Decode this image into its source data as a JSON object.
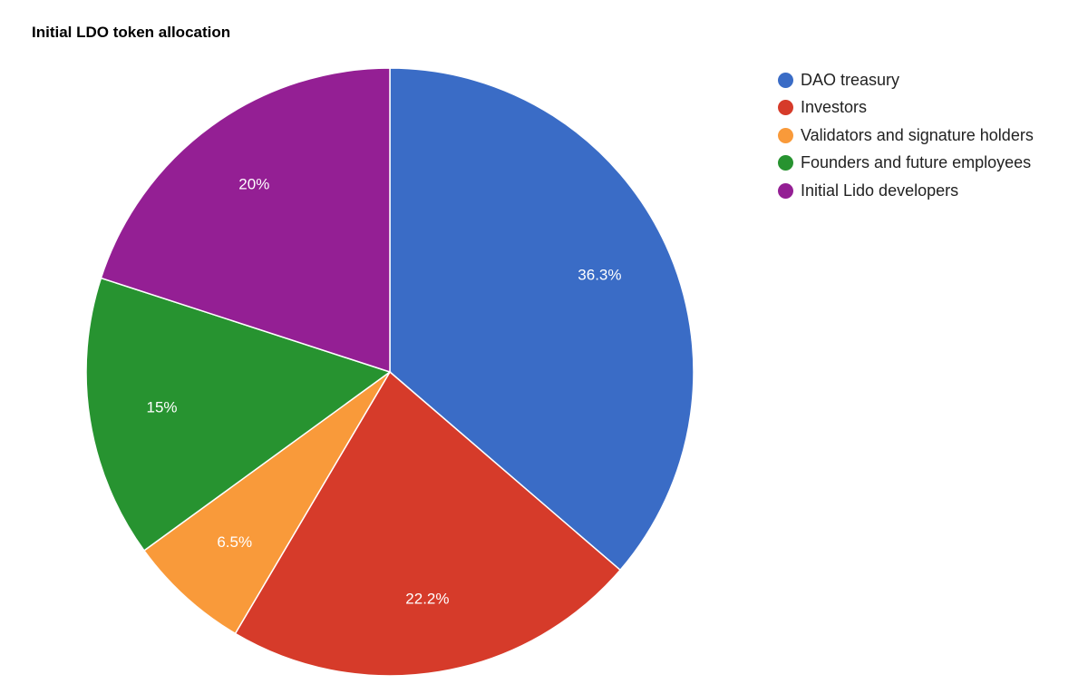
{
  "chart_data": {
    "type": "pie",
    "title": "Initial LDO token allocation",
    "categories": [
      "DAO treasury",
      "Investors",
      "Validators and signature holders",
      "Founders and future employees",
      "Initial Lido developers"
    ],
    "values": [
      36.3,
      22.2,
      6.5,
      15,
      20
    ],
    "value_labels": [
      "36.3%",
      "22.2%",
      "6.5%",
      "15%",
      "20%"
    ],
    "colors": [
      "#3a6cc6",
      "#d63b2a",
      "#f99a3a",
      "#279330",
      "#941f94"
    ],
    "start_angle": "12 o'clock",
    "direction": "clockwise",
    "legend_position": "right"
  }
}
